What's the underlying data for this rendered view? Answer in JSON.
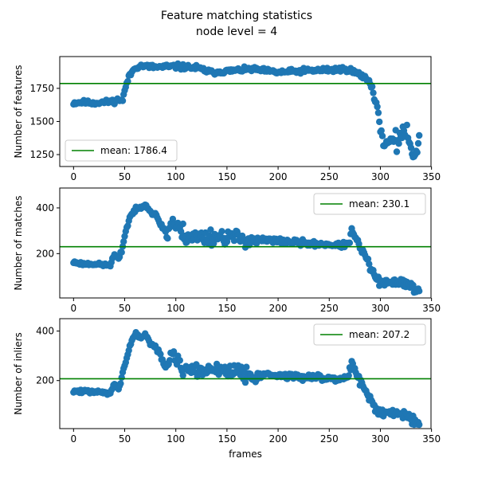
{
  "figure": {
    "title": "Feature matching statistics",
    "subtitle": "node level = 4"
  },
  "colors": {
    "points": "#1f77b4",
    "mean_line": "#008000",
    "axes": "#000000"
  },
  "chart_data": [
    {
      "type": "scatter",
      "ylabel": "Number of features",
      "xlabel": "",
      "xlim": [
        -13.5,
        349.5
      ],
      "ylim": [
        1160,
        1990
      ],
      "xticks": [
        0,
        50,
        100,
        150,
        200,
        250,
        300,
        350
      ],
      "yticks": [
        1250,
        1500,
        1750
      ],
      "grid": false,
      "legend_position": "lower-left",
      "mean": {
        "label": "mean: 1786.4",
        "value": 1786.4
      },
      "anchors": [
        [
          0,
          1640
        ],
        [
          8,
          1645
        ],
        [
          18,
          1640
        ],
        [
          30,
          1645
        ],
        [
          38,
          1650
        ],
        [
          44,
          1665
        ],
        [
          48,
          1660
        ],
        [
          50,
          1730
        ],
        [
          52,
          1790
        ],
        [
          55,
          1850
        ],
        [
          60,
          1905
        ],
        [
          65,
          1920
        ],
        [
          80,
          1910
        ],
        [
          100,
          1915
        ],
        [
          120,
          1905
        ],
        [
          135,
          1870
        ],
        [
          150,
          1880
        ],
        [
          175,
          1895
        ],
        [
          200,
          1870
        ],
        [
          220,
          1880
        ],
        [
          250,
          1890
        ],
        [
          268,
          1895
        ],
        [
          272,
          1880
        ],
        [
          278,
          1860
        ],
        [
          285,
          1830
        ],
        [
          290,
          1800
        ],
        [
          292,
          1750
        ],
        [
          294,
          1680
        ],
        [
          297,
          1610
        ],
        [
          300,
          1450
        ],
        [
          303,
          1330
        ],
        [
          307,
          1340
        ],
        [
          312,
          1360
        ],
        [
          316,
          1330
        ],
        [
          322,
          1450
        ],
        [
          326,
          1400
        ],
        [
          330,
          1300
        ],
        [
          335,
          1250
        ],
        [
          338,
          1390
        ]
      ],
      "noise": [
        15,
        15,
        18,
        15,
        15,
        18,
        20,
        70
      ],
      "seed": 11
    },
    {
      "type": "scatter",
      "ylabel": "Number of matches",
      "xlabel": "",
      "xlim": [
        -13.5,
        349.5
      ],
      "ylim": [
        6,
        487
      ],
      "xticks": [
        0,
        50,
        100,
        150,
        200,
        250,
        300,
        350
      ],
      "yticks": [
        200,
        400
      ],
      "grid": false,
      "legend_position": "upper-right",
      "mean": {
        "label": "mean: 230.1",
        "value": 230.1
      },
      "anchors": [
        [
          0,
          162
        ],
        [
          10,
          155
        ],
        [
          20,
          155
        ],
        [
          30,
          150
        ],
        [
          36,
          150
        ],
        [
          38,
          175
        ],
        [
          40,
          195
        ],
        [
          42,
          185
        ],
        [
          44,
          175
        ],
        [
          47,
          210
        ],
        [
          50,
          280
        ],
        [
          55,
          360
        ],
        [
          60,
          390
        ],
        [
          65,
          400
        ],
        [
          70,
          420
        ],
        [
          75,
          385
        ],
        [
          80,
          370
        ],
        [
          85,
          330
        ],
        [
          88,
          310
        ],
        [
          92,
          280
        ],
        [
          96,
          350
        ],
        [
          100,
          320
        ],
        [
          105,
          300
        ],
        [
          110,
          280
        ],
        [
          120,
          270
        ],
        [
          150,
          275
        ],
        [
          175,
          260
        ],
        [
          200,
          255
        ],
        [
          225,
          245
        ],
        [
          250,
          240
        ],
        [
          260,
          235
        ],
        [
          268,
          240
        ],
        [
          270,
          260
        ],
        [
          272,
          300
        ],
        [
          275,
          270
        ],
        [
          280,
          230
        ],
        [
          285,
          190
        ],
        [
          290,
          140
        ],
        [
          295,
          100
        ],
        [
          300,
          70
        ],
        [
          310,
          70
        ],
        [
          320,
          80
        ],
        [
          330,
          60
        ],
        [
          338,
          30
        ]
      ],
      "noise": [
        6,
        8,
        35,
        30,
        12,
        10,
        15,
        18
      ],
      "seed": 23
    },
    {
      "type": "scatter",
      "ylabel": "Number of inliers",
      "xlabel": "frames",
      "xlim": [
        -13.5,
        349.5
      ],
      "ylim": [
        6,
        450
      ],
      "xticks": [
        0,
        50,
        100,
        150,
        200,
        250,
        300,
        350
      ],
      "yticks": [
        200,
        400
      ],
      "grid": false,
      "legend_position": "upper-right",
      "mean": {
        "label": "mean: 207.2",
        "value": 207.2
      },
      "anchors": [
        [
          0,
          157
        ],
        [
          10,
          155
        ],
        [
          20,
          155
        ],
        [
          30,
          150
        ],
        [
          36,
          150
        ],
        [
          38,
          170
        ],
        [
          40,
          190
        ],
        [
          42,
          180
        ],
        [
          44,
          170
        ],
        [
          47,
          210
        ],
        [
          50,
          260
        ],
        [
          55,
          340
        ],
        [
          60,
          390
        ],
        [
          65,
          370
        ],
        [
          70,
          390
        ],
        [
          75,
          350
        ],
        [
          80,
          335
        ],
        [
          85,
          300
        ],
        [
          88,
          270
        ],
        [
          92,
          250
        ],
        [
          96,
          320
        ],
        [
          100,
          290
        ],
        [
          105,
          265
        ],
        [
          110,
          250
        ],
        [
          120,
          240
        ],
        [
          150,
          245
        ],
        [
          175,
          225
        ],
        [
          200,
          220
        ],
        [
          225,
          215
        ],
        [
          250,
          210
        ],
        [
          260,
          205
        ],
        [
          268,
          215
        ],
        [
          270,
          235
        ],
        [
          272,
          270
        ],
        [
          275,
          250
        ],
        [
          280,
          200
        ],
        [
          285,
          170
        ],
        [
          290,
          120
        ],
        [
          295,
          90
        ],
        [
          300,
          70
        ],
        [
          310,
          65
        ],
        [
          320,
          70
        ],
        [
          330,
          50
        ],
        [
          338,
          25
        ]
      ],
      "noise": [
        6,
        8,
        35,
        30,
        12,
        10,
        15,
        18
      ],
      "seed": 47
    }
  ]
}
